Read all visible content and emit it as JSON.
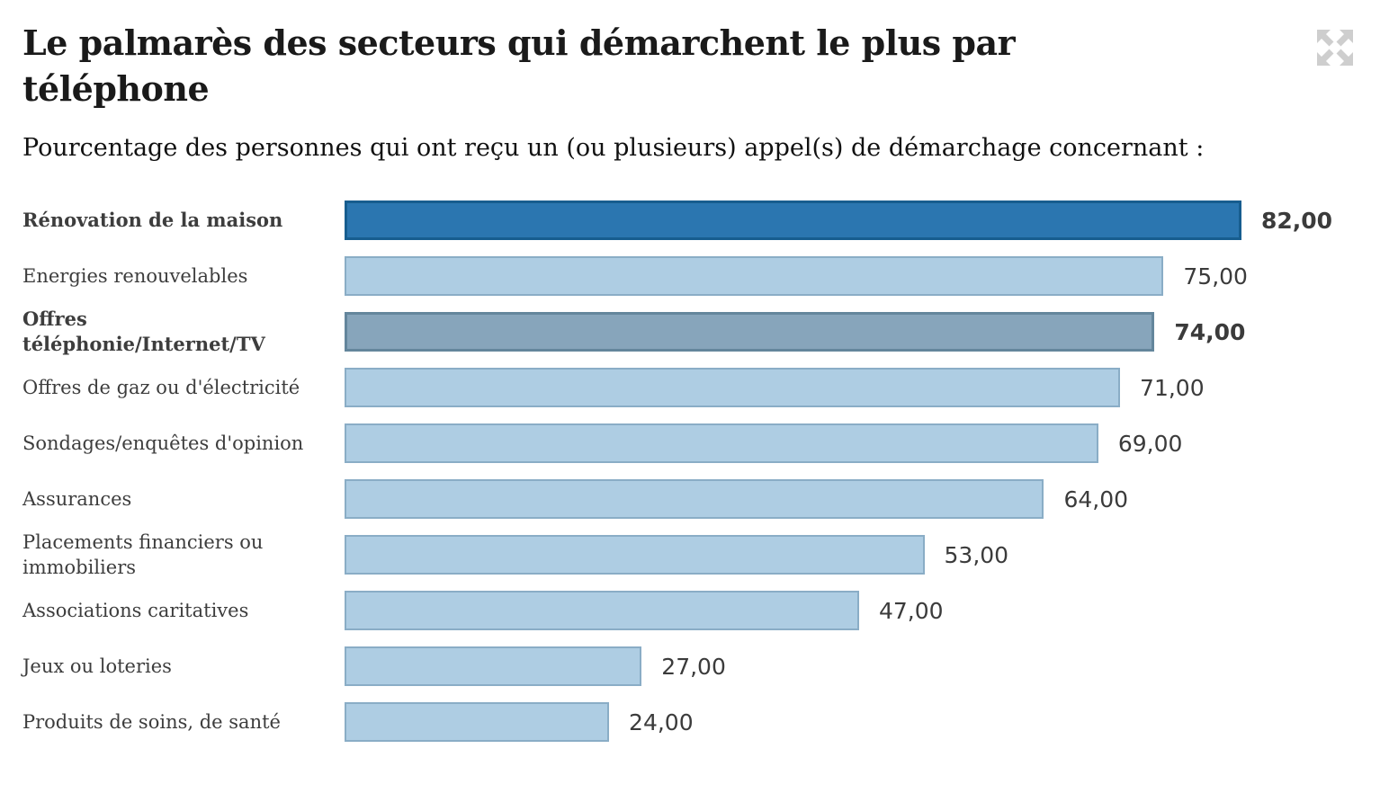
{
  "header": {
    "title": "Le palmarès des secteurs qui démarchent le plus par téléphone",
    "subtitle": "Pourcentage des personnes qui ont reçu un (ou plusieurs) appel(s) de démarchage concernant :"
  },
  "icons": {
    "expand": "fullscreen-expand-icon",
    "expand_color": "#cecece"
  },
  "colors": {
    "title": "#1a1a1a",
    "label": "#3d3d3d",
    "value": "#3b3b3b",
    "bars": {
      "default": {
        "fill": "#aecde3",
        "border": "#8aadc6",
        "thick": false
      },
      "highlight": {
        "fill": "#2b76b0",
        "border": "#175d8f",
        "thick": true
      },
      "secondary": {
        "fill": "#87a5bb",
        "border": "#64869c",
        "thick": true
      }
    }
  },
  "chart_data": {
    "type": "bar",
    "orientation": "horizontal",
    "title": "Le palmarès des secteurs qui démarchent le plus par téléphone",
    "subtitle": "Pourcentage des personnes qui ont reçu un (ou plusieurs) appel(s) de démarchage concernant :",
    "categories": [
      "Rénovation de la maison",
      "Energies renouvelables",
      "Offres téléphonie/Internet/TV",
      "Offres de gaz ou d'électricité",
      "Sondages/enquêtes d'opinion",
      "Assurances",
      "Placements financiers ou immobiliers",
      "Associations caritatives",
      "Jeux ou loteries",
      "Produits de soins, de santé"
    ],
    "values": [
      82,
      75,
      74,
      71,
      69,
      64,
      53,
      47,
      27,
      24
    ],
    "value_labels": [
      "82,00",
      "75,00",
      "74,00",
      "71,00",
      "69,00",
      "64,00",
      "53,00",
      "47,00",
      "27,00",
      "24,00"
    ],
    "xlim": [
      0,
      82
    ],
    "grid": false,
    "legend": false,
    "highlighted_categories": [
      "Rénovation de la maison",
      "Offres téléphonie/Internet/TV"
    ]
  },
  "rows": [
    {
      "label": "Rénovation de la maison",
      "value": 82,
      "value_display": "82,00",
      "style": "highlight",
      "bold": true
    },
    {
      "label": "Energies renouvelables",
      "value": 75,
      "value_display": "75,00",
      "style": "default",
      "bold": false
    },
    {
      "label": "Offres téléphonie/Internet/TV",
      "value": 74,
      "value_display": "74,00",
      "style": "secondary",
      "bold": true
    },
    {
      "label": "Offres de gaz ou d'électricité",
      "value": 71,
      "value_display": "71,00",
      "style": "default",
      "bold": false
    },
    {
      "label": "Sondages/enquêtes d'opinion",
      "value": 69,
      "value_display": "69,00",
      "style": "default",
      "bold": false
    },
    {
      "label": "Assurances",
      "value": 64,
      "value_display": "64,00",
      "style": "default",
      "bold": false
    },
    {
      "label": "Placements financiers ou immobiliers",
      "value": 53,
      "value_display": "53,00",
      "style": "default",
      "bold": false
    },
    {
      "label": "Associations caritatives",
      "value": 47,
      "value_display": "47,00",
      "style": "default",
      "bold": false
    },
    {
      "label": "Jeux ou loteries",
      "value": 27,
      "value_display": "27,00",
      "style": "default",
      "bold": false
    },
    {
      "label": "Produits de soins, de santé",
      "value": 24,
      "value_display": "24,00",
      "style": "default",
      "bold": false
    }
  ]
}
